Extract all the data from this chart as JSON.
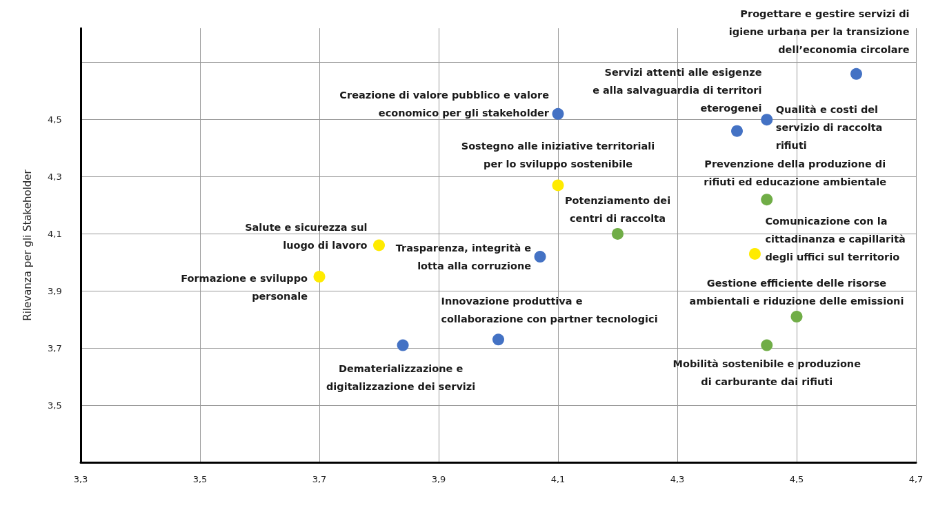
{
  "chart_data": {
    "type": "scatter",
    "ylabel": "Rilevanza per gli Stakeholder",
    "xlim": [
      3.3,
      4.7
    ],
    "ylim": [
      3.3,
      4.82
    ],
    "xticks": [
      {
        "value": 3.3,
        "label": "3,3"
      },
      {
        "value": 3.5,
        "label": "3,5"
      },
      {
        "value": 3.7,
        "label": "3,7"
      },
      {
        "value": 3.9,
        "label": "3,9"
      },
      {
        "value": 4.1,
        "label": "4,1"
      },
      {
        "value": 4.3,
        "label": "4,3"
      },
      {
        "value": 4.5,
        "label": "4,5"
      },
      {
        "value": 4.7,
        "label": "4,7"
      }
    ],
    "yticks": [
      {
        "value": 3.5,
        "label": "3,5"
      },
      {
        "value": 3.7,
        "label": "3,7"
      },
      {
        "value": 3.9,
        "label": "3,9"
      },
      {
        "value": 4.1,
        "label": "4,1"
      },
      {
        "value": 4.3,
        "label": "4,3"
      },
      {
        "value": 4.5,
        "label": "4,5"
      },
      {
        "value": 4.7,
        "label": null
      }
    ],
    "grid": true,
    "marker": "circle",
    "series": [
      {
        "color": "#4472c4",
        "x": [
          4.6,
          4.1,
          4.4,
          4.45,
          4.07,
          4.0,
          3.84
        ],
        "values": [
          4.66,
          4.52,
          4.46,
          4.5,
          4.02,
          3.73,
          3.71
        ]
      },
      {
        "color": "#ffeb00",
        "x": [
          4.1,
          3.8,
          4.43,
          3.7
        ],
        "values": [
          4.27,
          4.06,
          4.03,
          3.95
        ]
      },
      {
        "color": "#70ad47",
        "x": [
          4.45,
          4.2,
          4.5,
          4.45
        ],
        "values": [
          4.22,
          4.1,
          3.81,
          3.71
        ]
      }
    ],
    "annotations": [
      {
        "text": "Progettare e gestire servizi di\nigiene urbana per la transizione\ndell’economia circolare",
        "x": 4.6,
        "y": 4.66
      },
      {
        "text": "Creazione di valore pubblico e valore\neconomico per gli stakeholder",
        "x": 4.1,
        "y": 4.52
      },
      {
        "text": "Servizi attenti alle esigenze\ne alla salvaguardia di territori\neterogenei",
        "x": 4.4,
        "y": 4.46
      },
      {
        "text": "Qualità e costi del\nservizio di raccolta\nrifiuti",
        "x": 4.45,
        "y": 4.5
      },
      {
        "text": "Trasparenza, integrità e\nlotta alla corruzione",
        "x": 4.07,
        "y": 4.02
      },
      {
        "text": "Innovazione produttiva e\ncollaborazione con partner tecnologici",
        "x": 4.0,
        "y": 3.73
      },
      {
        "text": "Dematerializzazione e\ndigitalizzazione dei servizi",
        "x": 3.84,
        "y": 3.71
      },
      {
        "text": "Sostegno alle iniziative territoriali\nper lo sviluppo sostenibile",
        "x": 4.1,
        "y": 4.27
      },
      {
        "text": "Salute e sicurezza sul\nluogo di lavoro",
        "x": 3.8,
        "y": 4.06
      },
      {
        "text": "Comunicazione con la\ncittadinanza e capillarità\ndegli uffici sul territorio",
        "x": 4.43,
        "y": 4.03
      },
      {
        "text": "Formazione e sviluppo\npersonale",
        "x": 3.7,
        "y": 3.95
      },
      {
        "text": "Prevenzione della produzione di\nrifiuti ed educazione ambientale",
        "x": 4.45,
        "y": 4.22
      },
      {
        "text": "Potenziamento dei\ncentri di raccolta",
        "x": 4.2,
        "y": 4.1
      },
      {
        "text": "Gestione efficiente delle risorse\nambientali e riduzione delle emissioni",
        "x": 4.5,
        "y": 3.81
      },
      {
        "text": "Mobilità sostenibile e produzione\ndi carburante dai rifiuti",
        "x": 4.45,
        "y": 3.71
      }
    ]
  }
}
